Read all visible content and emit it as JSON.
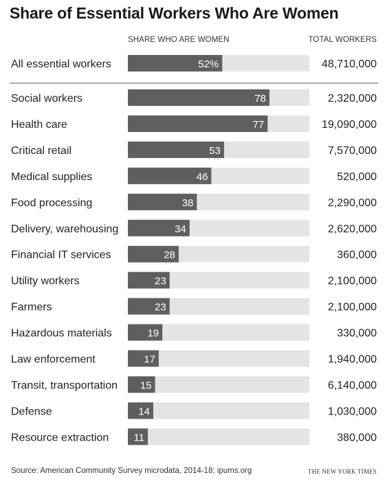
{
  "title": "Share of Essential Workers Who Are Women",
  "columns": {
    "share": "SHARE WHO ARE WOMEN",
    "total": "TOTAL WORKERS"
  },
  "colors": {
    "bar": "#5f5f5f",
    "track": "#e4e4e4",
    "bar_label": "#ffffff",
    "divider": "#7a7a7a"
  },
  "chart_data": {
    "type": "bar",
    "orientation": "horizontal",
    "xlim": [
      0,
      100
    ],
    "unit": "percent",
    "summary": {
      "category": "All essential workers",
      "value": 52,
      "label": "52%",
      "total": "48,710,000"
    },
    "categories": [
      "Social workers",
      "Health care",
      "Critical retail",
      "Medical supplies",
      "Food processing",
      "Delivery, warehousing",
      "Financial IT services",
      "Utility workers",
      "Farmers",
      "Hazardous materials",
      "Law enforcement",
      "Transit, transportation",
      "Defense",
      "Resource extraction"
    ],
    "values": [
      78,
      77,
      53,
      46,
      38,
      34,
      28,
      23,
      23,
      19,
      17,
      15,
      14,
      11
    ],
    "totals": [
      "2,320,000",
      "19,090,000",
      "7,570,000",
      "520,000",
      "2,290,000",
      "2,620,000",
      "360,000",
      "2,100,000",
      "2,100,000",
      "330,000",
      "1,940,000",
      "6,140,000",
      "1,030,000",
      "380,000"
    ]
  },
  "footer": {
    "source": "Source: American Community Survey microdata, 2014-18; ipums.org",
    "credit": "THE NEW YORK TIMES"
  }
}
